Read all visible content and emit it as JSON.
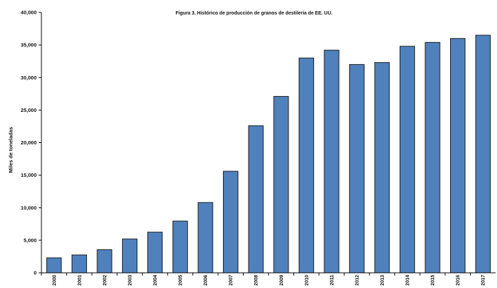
{
  "chart_data": {
    "type": "bar",
    "title": "Figura 3. Histórico de producción de granos de destilería de EE. UU.",
    "ylabel": "Miles de toneladas",
    "xlabel": "",
    "categories": [
      "2000",
      "2001",
      "2002",
      "2003",
      "2004",
      "2005",
      "2006",
      "2007",
      "2008",
      "2009",
      "2010",
      "2011",
      "2012",
      "2013",
      "2014",
      "2015",
      "2016",
      "2017"
    ],
    "values": [
      2300,
      2750,
      3550,
      5200,
      6250,
      7950,
      10800,
      15600,
      22600,
      27100,
      33000,
      34200,
      32000,
      32300,
      34800,
      35400,
      36000,
      36500
    ],
    "yticks": [
      "0",
      "5,000",
      "10,000",
      "15,000",
      "20,000",
      "25,000",
      "30,000",
      "35,000",
      "40,000"
    ],
    "ylim": [
      0,
      40000
    ],
    "grid": false,
    "bar_color": "#4f81bd"
  }
}
